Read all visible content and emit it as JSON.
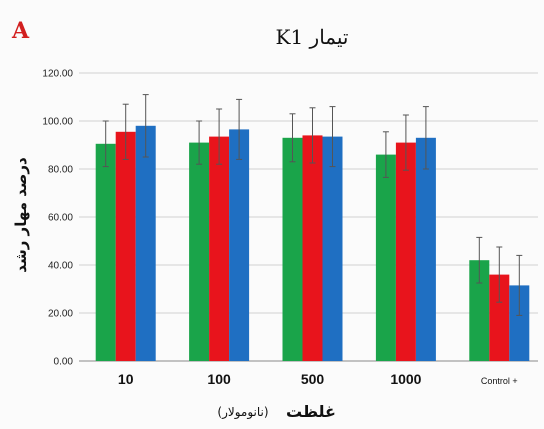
{
  "panel_letter": "A",
  "chart_data": {
    "type": "bar",
    "title": "تیمار K1",
    "ylabel": "درصد مهار رشد",
    "xlabel": "غلظت",
    "xlabel_unit": "(نانومولار)",
    "ylim": [
      0,
      120
    ],
    "yticks": [
      "0.00",
      "20.00",
      "40.00",
      "60.00",
      "80.00",
      "100.00",
      "120.00"
    ],
    "categories": [
      "10",
      "100",
      "500",
      "1000",
      "Control +"
    ],
    "grid": true,
    "legend": "none",
    "series": [
      {
        "color": "#1aa44a",
        "values": [
          90.5,
          91.0,
          93.0,
          86.0,
          42.0
        ],
        "errors": [
          9.5,
          9.0,
          10.0,
          9.5,
          9.5
        ]
      },
      {
        "color": "#e8141c",
        "values": [
          95.5,
          93.5,
          94.0,
          91.0,
          36.0
        ],
        "errors": [
          11.5,
          11.5,
          11.5,
          11.5,
          11.5
        ]
      },
      {
        "color": "#1f6fc2",
        "values": [
          98.0,
          96.5,
          93.5,
          93.0,
          31.5
        ],
        "errors": [
          13.0,
          12.5,
          12.5,
          13.0,
          12.5
        ]
      }
    ]
  }
}
